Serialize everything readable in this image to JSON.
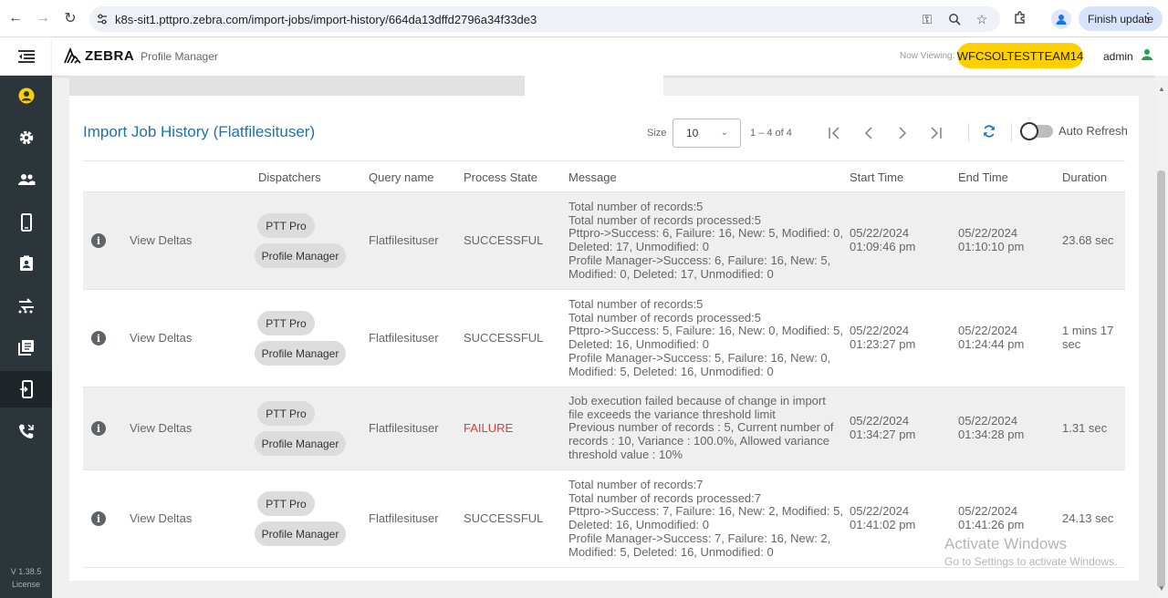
{
  "browser": {
    "url": "k8s-sit1.pttpro.zebra.com/import-jobs/import-history/664da13dffd2796a34f33de3",
    "finish_update": "Finish update"
  },
  "header": {
    "logo_text": "ZEBRA",
    "product_name": "Profile Manager",
    "now_viewing_label": "Now Viewing:",
    "team": "WFCSOLTESTTEAM14",
    "user": "admin"
  },
  "sidebar": {
    "items": [
      {
        "icon": "account-circle-icon"
      },
      {
        "icon": "gear-icon"
      },
      {
        "icon": "people-icon"
      },
      {
        "icon": "phone-device-icon"
      },
      {
        "icon": "contact-card-icon"
      },
      {
        "icon": "routing-icon"
      },
      {
        "icon": "library-icon"
      },
      {
        "icon": "import-device-icon"
      },
      {
        "icon": "phone-forward-icon"
      }
    ],
    "version": "V 1.38.5",
    "license": "License"
  },
  "main": {
    "title": "Import Job History (Flatfilesituser)",
    "size_label": "Size",
    "page_size": "10",
    "range_text": "1 – 4 of 4",
    "auto_refresh_label": "Auto Refresh",
    "auto_refresh_on": false
  },
  "table": {
    "headers": {
      "dispatchers": "Dispatchers",
      "query_name": "Query name",
      "process_state": "Process State",
      "message": "Message",
      "start_time": "Start Time",
      "end_time": "End Time",
      "duration": "Duration"
    },
    "rows": [
      {
        "action": "View Deltas",
        "dispatchers": [
          "PTT Pro",
          "Profile Manager"
        ],
        "query_name": "Flatfilesituser",
        "state": "SUCCESSFUL",
        "message": [
          "Total number of records:5",
          "Total number of records processed:5",
          "Pttpro->Success: 6, Failure: 16, New: 5, Modified: 0,",
          "Deleted: 17, Unmodified: 0",
          "Profile Manager->Success: 6, Failure: 16, New: 5,",
          "Modified: 0, Deleted: 17, Unmodified: 0"
        ],
        "start": [
          "05/22/2024",
          "01:09:46 pm"
        ],
        "end": [
          "05/22/2024",
          "01:10:10 pm"
        ],
        "duration": [
          "23.68 sec"
        ]
      },
      {
        "action": "View Deltas",
        "dispatchers": [
          "PTT Pro",
          "Profile Manager"
        ],
        "query_name": "Flatfilesituser",
        "state": "SUCCESSFUL",
        "message": [
          "Total number of records:5",
          "Total number of records processed:5",
          "Pttpro->Success: 5, Failure: 16, New: 0, Modified: 5,",
          "Deleted: 16, Unmodified: 0",
          "Profile Manager->Success: 5, Failure: 16, New: 0,",
          "Modified: 5, Deleted: 16, Unmodified: 0"
        ],
        "start": [
          "05/22/2024",
          "01:23:27 pm"
        ],
        "end": [
          "05/22/2024",
          "01:24:44 pm"
        ],
        "duration": [
          "1 mins 17",
          "sec"
        ]
      },
      {
        "action": "View Deltas",
        "dispatchers": [
          "PTT Pro",
          "Profile Manager"
        ],
        "query_name": "Flatfilesituser",
        "state": "FAILURE",
        "message": [
          "Job execution failed because of change in import",
          "file exceeds the variance threshold limit",
          "Previous number of records : 5, Current number of",
          "records : 10, Variance : 100.0%, Allowed variance",
          "threshold value : 10%"
        ],
        "start": [
          "05/22/2024",
          "01:34:27 pm"
        ],
        "end": [
          "05/22/2024",
          "01:34:28 pm"
        ],
        "duration": [
          "1.31 sec"
        ]
      },
      {
        "action": "View Deltas",
        "dispatchers": [
          "PTT Pro",
          "Profile Manager"
        ],
        "query_name": "Flatfilesituser",
        "state": "SUCCESSFUL",
        "message": [
          "Total number of records:7",
          "Total number of records processed:7",
          "Pttpro->Success: 7, Failure: 16, New: 2, Modified: 5,",
          "Deleted: 16, Unmodified: 0",
          "Profile Manager->Success: 7, Failure: 16, New: 2,",
          "Modified: 5, Deleted: 16, Unmodified: 0"
        ],
        "start": [
          "05/22/2024",
          "01:41:02 pm"
        ],
        "end": [
          "05/22/2024",
          "01:41:26 pm"
        ],
        "duration": [
          "24.13 sec"
        ]
      }
    ]
  },
  "watermark": {
    "line1": "Activate Windows",
    "line2": "Go to Settings to activate Windows."
  }
}
